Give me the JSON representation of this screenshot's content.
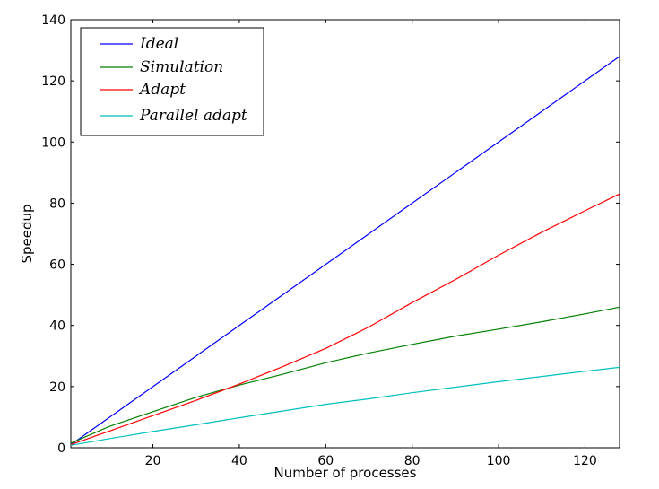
{
  "chart_data": {
    "type": "line",
    "title": "",
    "xlabel": "Number of processes",
    "ylabel": "Speedup",
    "xlim": [
      1,
      128
    ],
    "ylim": [
      0,
      140
    ],
    "xticks": [
      20,
      40,
      60,
      80,
      100,
      120
    ],
    "yticks": [
      0,
      20,
      40,
      60,
      80,
      100,
      120,
      140
    ],
    "grid": false,
    "legend_position": "top-left",
    "series": [
      {
        "name": "Ideal",
        "color": "#0000ff",
        "x": [
          1,
          10,
          20,
          40,
          60,
          80,
          100,
          120,
          128
        ],
        "y": [
          1,
          10,
          20,
          40,
          60,
          80,
          100,
          120,
          128
        ]
      },
      {
        "name": "Simulation",
        "color": "#008000",
        "x": [
          1,
          10,
          20,
          30,
          40,
          50,
          60,
          70,
          80,
          90,
          100,
          110,
          120,
          128
        ],
        "y": [
          1.5,
          7,
          11.8,
          16.5,
          20.5,
          24,
          27.8,
          31,
          33.8,
          36.5,
          38.8,
          41.2,
          43.8,
          46
        ]
      },
      {
        "name": "Adapt",
        "color": "#ff0000",
        "x": [
          1,
          10,
          20,
          30,
          40,
          50,
          60,
          70,
          80,
          90,
          100,
          110,
          120,
          128
        ],
        "y": [
          1,
          5.5,
          10.5,
          15.5,
          20.8,
          26.5,
          32.5,
          39.5,
          47.5,
          55,
          63,
          70.5,
          77.5,
          83
        ]
      },
      {
        "name": "Parallel adapt",
        "color": "#00bfbf",
        "x": [
          1,
          10,
          20,
          30,
          40,
          50,
          60,
          70,
          80,
          90,
          100,
          110,
          120,
          128
        ],
        "y": [
          0.8,
          3,
          5.3,
          7.5,
          9.8,
          12,
          14.2,
          16,
          18,
          19.8,
          21.6,
          23.3,
          25,
          26.3
        ]
      }
    ]
  }
}
